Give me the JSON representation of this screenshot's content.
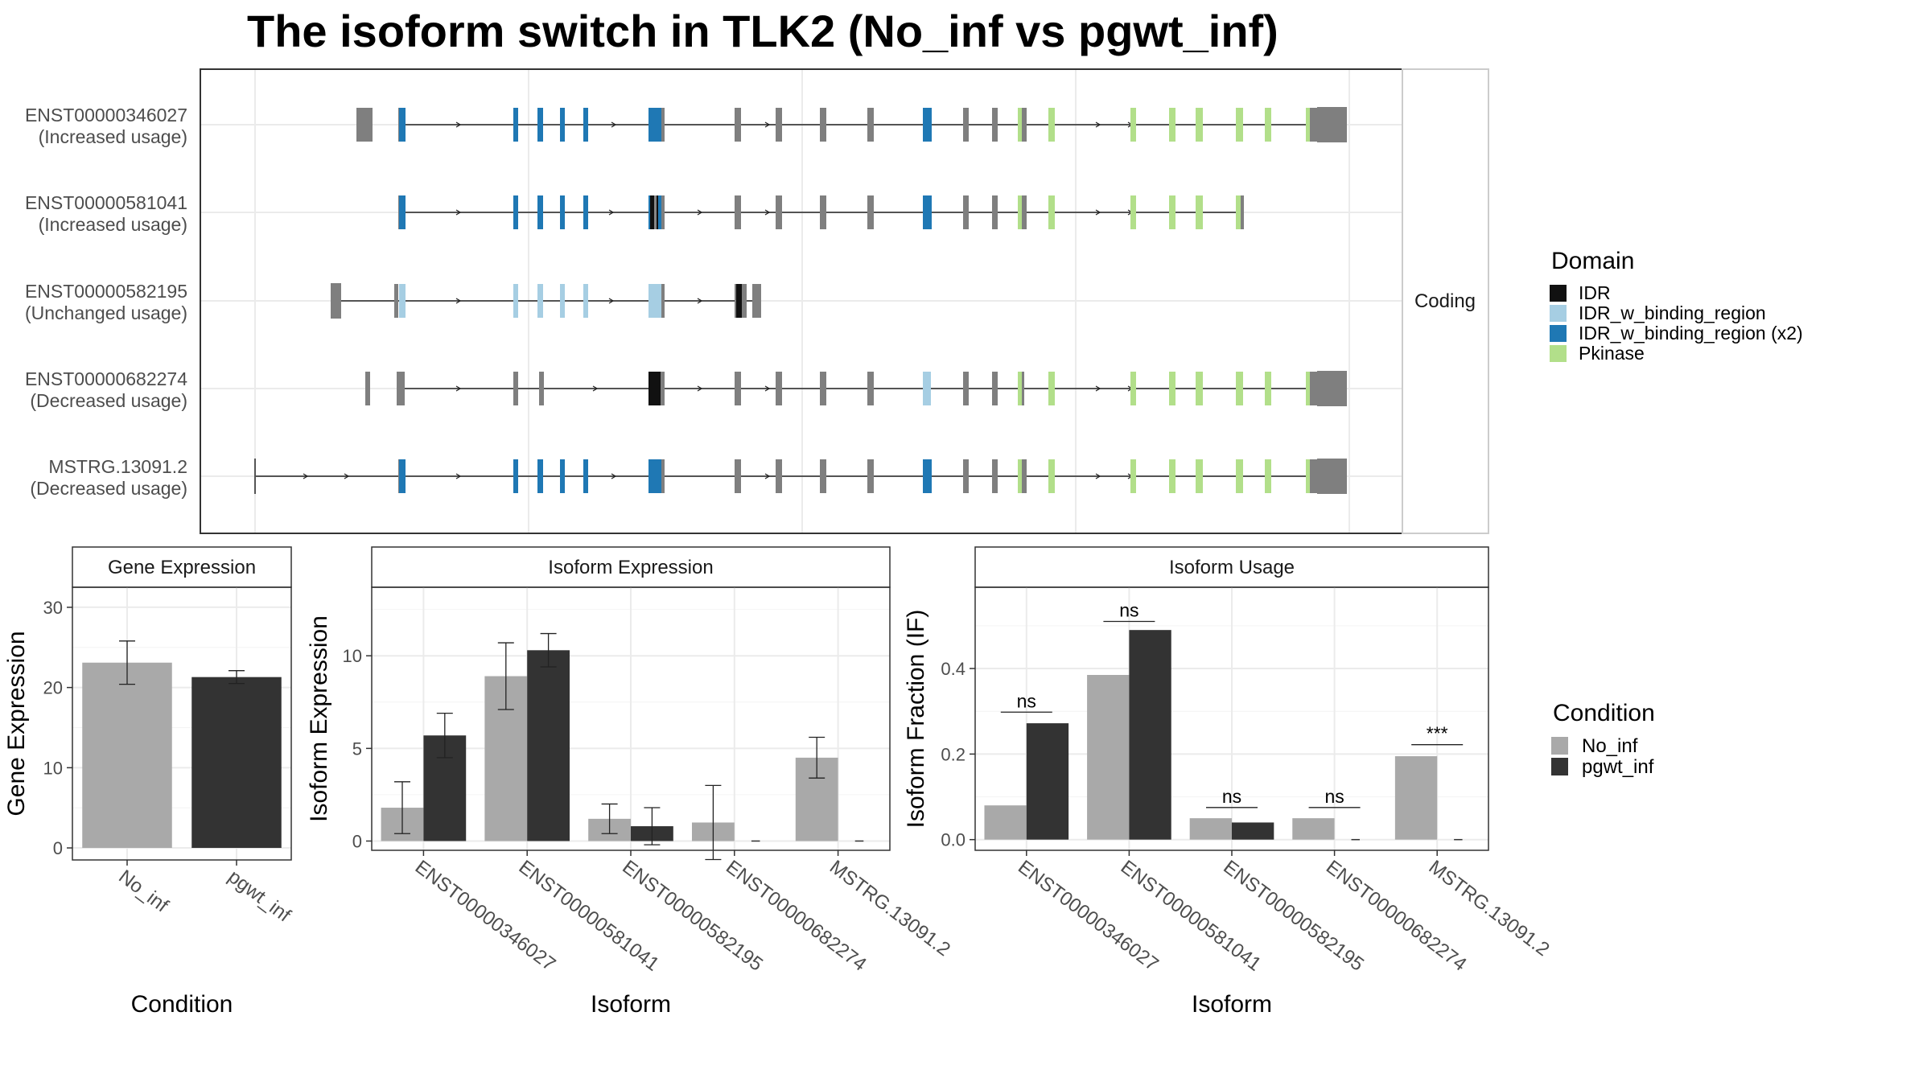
{
  "title": "The isoform switch in TLK2 (No_inf vs pgwt_inf)",
  "facet_label": "Coding",
  "legend_domain": {
    "title": "Domain",
    "items": [
      {
        "label": "IDR",
        "color": "#111111"
      },
      {
        "label": "IDR_w_binding_region",
        "color": "#a6cee3"
      },
      {
        "label": "IDR_w_binding_region (x2)",
        "color": "#1f78b4"
      },
      {
        "label": "Pkinase",
        "color": "#b2df8a"
      }
    ]
  },
  "legend_condition": {
    "title": "Condition",
    "items": [
      {
        "label": "No_inf",
        "color": "#a9a9a9"
      },
      {
        "label": "pgwt_inf",
        "color": "#333333"
      }
    ]
  },
  "colors": {
    "exon": "#7f7f7f",
    "IDR": "#111111",
    "IDR_w_binding_region": "#a6cee3",
    "IDR_w_binding_region (x2)": "#1f78b4",
    "Pkinase": "#b2df8a",
    "No_inf": "#a9a9a9",
    "pgwt_inf": "#333333"
  },
  "transcripts": [
    {
      "id": "ENST00000346027",
      "status": "(Increased usage)"
    },
    {
      "id": "ENST00000581041",
      "status": "(Increased usage)"
    },
    {
      "id": "ENST00000582195",
      "status": "(Unchanged usage)"
    },
    {
      "id": "ENST00000682274",
      "status": "(Decreased usage)"
    },
    {
      "id": "MSTRG.13091.2",
      "status": "(Decreased usage)"
    }
  ],
  "chart_data": [
    {
      "type": "bar",
      "panel": "Gene Expression",
      "xlabel": "Condition",
      "ylabel": "Gene Expression",
      "categories": [
        "No_inf",
        "pgwt_inf"
      ],
      "values": [
        23.1,
        21.3
      ],
      "errors": [
        2.7,
        0.8
      ],
      "ylim": [
        -1.5,
        32.5
      ],
      "yticks": [
        0,
        10,
        20,
        30
      ],
      "grid": true
    },
    {
      "type": "bar",
      "panel": "Isoform Expression",
      "xlabel": "Isoform",
      "ylabel": "Isoform Expression",
      "categories": [
        "ENST00000346027",
        "ENST00000581041",
        "ENST00000582195",
        "ENST00000682274",
        "MSTRG.13091.2"
      ],
      "series": [
        {
          "name": "No_inf",
          "values": [
            1.8,
            8.9,
            1.2,
            1.0,
            4.5
          ],
          "errors": [
            1.4,
            1.8,
            0.8,
            2.0,
            1.1
          ]
        },
        {
          "name": "pgwt_inf",
          "values": [
            5.7,
            10.3,
            0.8,
            0.0,
            0.0
          ],
          "errors": [
            1.2,
            0.9,
            1.0,
            0.0,
            0.0
          ]
        }
      ],
      "ylim": [
        -0.5,
        13.7
      ],
      "yticks": [
        0,
        5,
        10
      ],
      "grid": true
    },
    {
      "type": "bar",
      "panel": "Isoform Usage",
      "xlabel": "Isoform",
      "ylabel": "Isoform Fraction (IF)",
      "categories": [
        "ENST00000346027",
        "ENST00000581041",
        "ENST00000582195",
        "ENST00000682274",
        "MSTRG.13091.2"
      ],
      "series": [
        {
          "name": "No_inf",
          "values": [
            0.08,
            0.385,
            0.05,
            0.05,
            0.195
          ]
        },
        {
          "name": "pgwt_inf",
          "values": [
            0.272,
            0.49,
            0.04,
            0.0,
            0.0
          ]
        }
      ],
      "significance": [
        "ns",
        "ns",
        "ns",
        "ns",
        "***"
      ],
      "sig_y": [
        0.298,
        0.51,
        0.075,
        0.075,
        0.222
      ],
      "ylim": [
        -0.025,
        0.59
      ],
      "yticks": [
        0.0,
        0.2,
        0.4
      ],
      "ytick_labels": [
        "0.0",
        "0.2",
        "0.4"
      ],
      "grid": true
    }
  ]
}
